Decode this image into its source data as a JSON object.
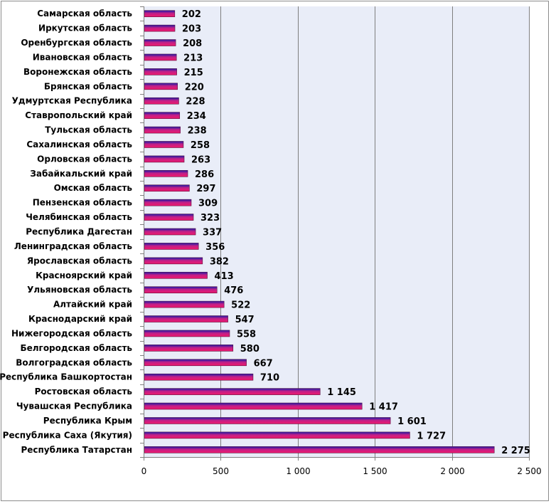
{
  "chart_data": {
    "type": "bar",
    "orientation": "horizontal",
    "title": "",
    "xlabel": "",
    "ylabel": "",
    "categories": [
      "Самарская область",
      "Иркутская область",
      "Оренбургская область",
      "Ивановская область",
      "Воронежская область",
      "Брянская область",
      "Удмуртская Республика",
      "Ставропольский край",
      "Тульская область",
      "Сахалинская область",
      "Орловская область",
      "Забайкальский край",
      "Омская область",
      "Пензенская область",
      "Челябинская область",
      "Республика Дагестан",
      "Ленинградская область",
      "Ярославская область",
      "Красноярский край",
      "Ульяновская область",
      "Алтайский край",
      "Краснодарский край",
      "Нижегородская область",
      "Белгородская область",
      "Волгоградская область",
      "Республика Башкортостан",
      "Ростовская область",
      "Чувашская Республика",
      "Республика Крым",
      "Республика Саха (Якутия)",
      "Республика Татарстан"
    ],
    "values": [
      202,
      203,
      208,
      213,
      215,
      220,
      228,
      234,
      238,
      258,
      263,
      286,
      297,
      309,
      323,
      337,
      356,
      382,
      413,
      476,
      522,
      547,
      558,
      580,
      667,
      710,
      1145,
      1417,
      1601,
      1727,
      2275
    ],
    "value_labels": [
      "202",
      "203",
      "208",
      "213",
      "215",
      "220",
      "228",
      "234",
      "238",
      "258",
      "263",
      "286",
      "297",
      "309",
      "323",
      "337",
      "356",
      "382",
      "413",
      "476",
      "522",
      "547",
      "558",
      "580",
      "667",
      "710",
      "1 145",
      "1 417",
      "1 601",
      "1 727",
      "2 275"
    ],
    "xlim": [
      0,
      2500
    ],
    "x_ticks": [
      0,
      500,
      1000,
      1500,
      2000,
      2500
    ],
    "x_tick_labels": [
      "0",
      "500",
      "1 000",
      "1 500",
      "2 000",
      "2 500"
    ],
    "grid": "vertical-major",
    "legend": "none",
    "colors": {
      "plot_background": "#e9edf8",
      "gridline": "#7f7f7f",
      "bar_top": "#1a1aa8",
      "bar_bottom": "#f0186c",
      "bar_edge": "#5a1040"
    }
  }
}
